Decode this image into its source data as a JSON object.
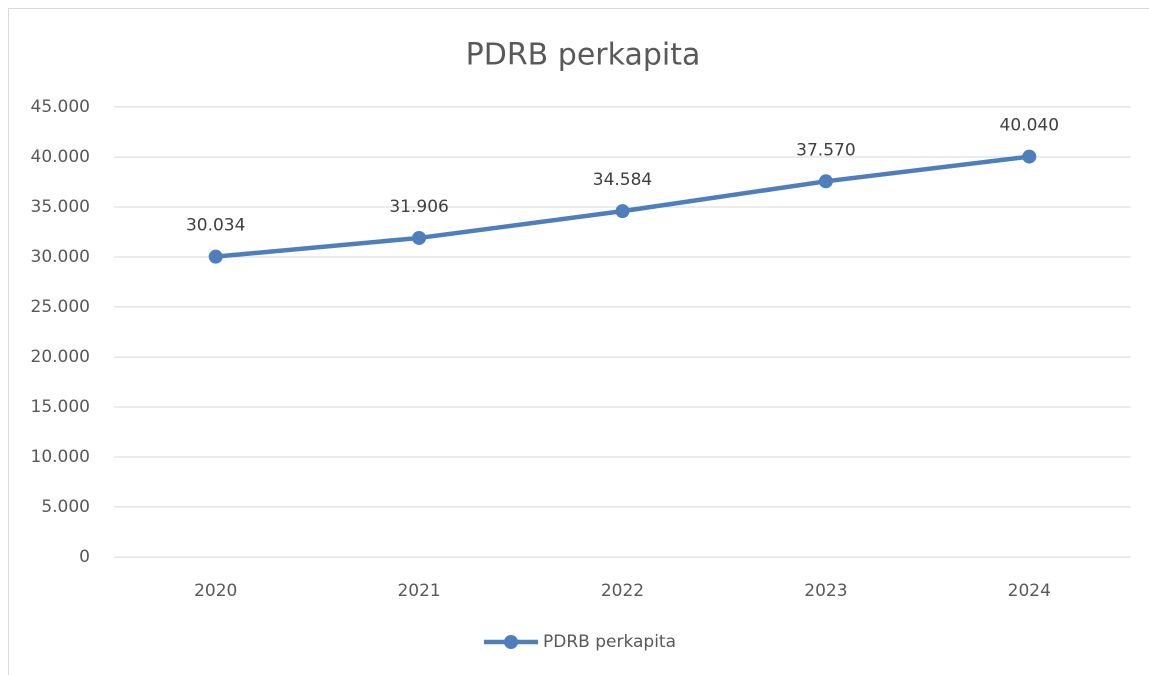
{
  "chart_data": {
    "type": "line",
    "title": "PDRB perkapita",
    "categories": [
      "2020",
      "2021",
      "2022",
      "2023",
      "2024"
    ],
    "series": [
      {
        "name": "PDRB perkapita",
        "color": "#4e7fbc",
        "values": [
          30034,
          31906,
          34584,
          37570,
          40040
        ],
        "value_labels": [
          "30.034",
          "31.906",
          "34.584",
          "37.570",
          "40.040"
        ]
      }
    ],
    "ylim": [
      0,
      45000
    ],
    "yticks": [
      0,
      {
        "value": 5000,
        "label": "5.000"
      },
      {
        "value": 10000,
        "label": "10.000"
      },
      {
        "value": 15000,
        "label": "15.000"
      },
      {
        "value": 20000,
        "label": "20.000"
      },
      {
        "value": 25000,
        "label": "25.000"
      },
      {
        "value": 30000,
        "label": "30.000"
      },
      {
        "value": 35000,
        "label": "35.000"
      },
      {
        "value": 40000,
        "label": "40.000"
      },
      {
        "value": 45000,
        "label": "45.000"
      }
    ],
    "grid": true,
    "legend": "bottom"
  }
}
